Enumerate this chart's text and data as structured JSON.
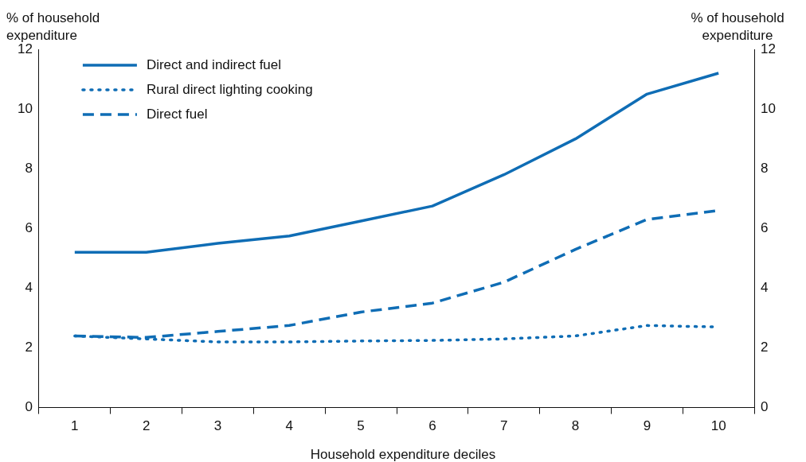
{
  "chart_data": {
    "type": "line",
    "xlabel": "Household expenditure deciles",
    "ylabel": "% of household expenditure",
    "y2label": "% of household expenditure",
    "categories": [
      "1",
      "2",
      "3",
      "4",
      "5",
      "6",
      "7",
      "8",
      "9",
      "10"
    ],
    "series": [
      {
        "name": "Direct and indirect fuel",
        "color": "#0f6db5",
        "line_style": "solid",
        "values": [
          5.2,
          5.2,
          5.5,
          5.75,
          6.25,
          6.75,
          7.8,
          9.0,
          10.5,
          11.2
        ]
      },
      {
        "name": "Rural direct lighting cooking",
        "color": "#0f6db5",
        "line_style": "dotted",
        "values": [
          2.4,
          2.3,
          2.2,
          2.2,
          2.23,
          2.25,
          2.3,
          2.4,
          2.75,
          2.7
        ]
      },
      {
        "name": "Direct fuel",
        "color": "#0f6db5",
        "line_style": "dashed",
        "values": [
          2.4,
          2.35,
          2.55,
          2.75,
          3.2,
          3.5,
          4.2,
          5.3,
          6.3,
          6.6
        ]
      }
    ],
    "ylim": [
      0,
      12
    ],
    "yticks": [
      0,
      2,
      4,
      6,
      8,
      10,
      12
    ],
    "y2lim": [
      0,
      12
    ],
    "y2ticks": [
      0,
      2,
      4,
      6,
      8,
      10,
      12
    ],
    "grid": false,
    "legend": "top left",
    "marker": "none"
  }
}
